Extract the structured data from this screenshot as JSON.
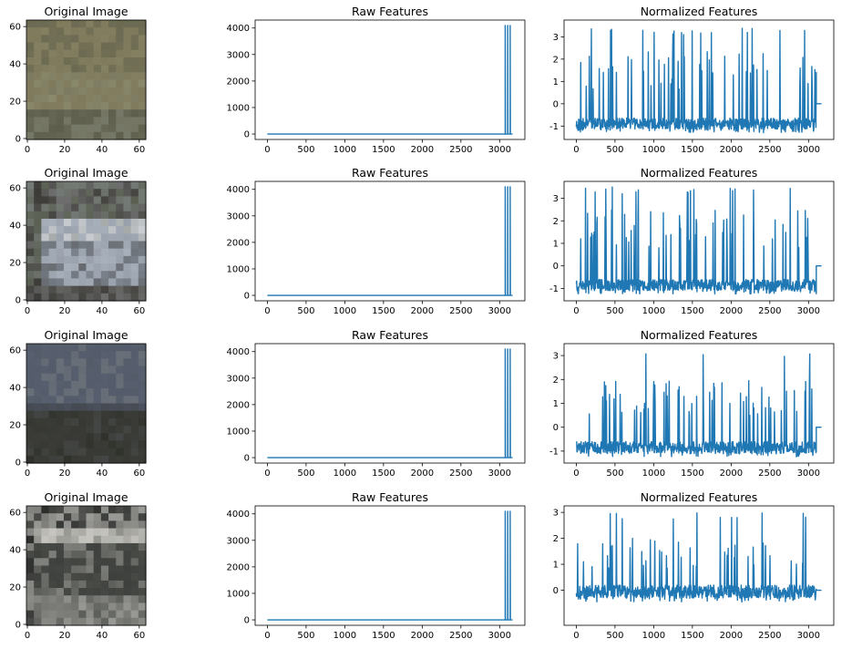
{
  "colors": {
    "line": "#1f77b4",
    "axes": "#000000",
    "background": "#ffffff"
  },
  "chart_data": [
    {
      "row": 1,
      "panels": [
        {
          "type": "image",
          "title": "Original Image",
          "xticks": [
            0,
            20,
            40,
            60
          ],
          "yticks": [
            0,
            20,
            40,
            60
          ],
          "xlim": [
            -0.5,
            63.5
          ],
          "ylim": [
            63.5,
            -0.5
          ],
          "image_description": "blurry roadside scene with grass and trees",
          "palette": [
            "#6b6a52",
            "#807a5c",
            "#8c8a6c",
            "#5e5e4c",
            "#777968"
          ]
        },
        {
          "type": "line",
          "title": "Raw Features",
          "xticks": [
            0,
            500,
            1000,
            1500,
            2000,
            2500,
            3000
          ],
          "yticks": [
            0,
            1000,
            2000,
            3000,
            4000
          ],
          "xlim": [
            -158,
            3326
          ],
          "ylim": [
            -205,
            4300
          ],
          "baseline": 0,
          "spikes": [
            {
              "x": 3072,
              "y": 4096
            },
            {
              "x": 3104,
              "y": 4096
            },
            {
              "x": 3136,
              "y": 4096
            }
          ],
          "x_end": 3167
        },
        {
          "type": "line",
          "title": "Normalized Features",
          "xticks": [
            0,
            500,
            1000,
            1500,
            2000,
            2500,
            3000
          ],
          "yticks": [
            -1,
            0,
            1,
            2,
            3
          ],
          "xlim": [
            -158,
            3326
          ],
          "ylim": [
            -1.6,
            3.75
          ],
          "pattern": {
            "floor": -1.15,
            "typical_peak": 2.4,
            "max_peak": 3.4,
            "tail_value": 0,
            "tail_start": 3100
          }
        }
      ]
    },
    {
      "row": 2,
      "panels": [
        {
          "type": "image",
          "title": "Original Image",
          "xticks": [
            0,
            20,
            40,
            60
          ],
          "yticks": [
            0,
            20,
            40,
            60
          ],
          "xlim": [
            -0.5,
            63.5
          ],
          "ylim": [
            63.5,
            -0.5
          ],
          "image_description": "rear view of a silver hatchback car",
          "palette": [
            "#a8b0bc",
            "#7e858f",
            "#3b3a36",
            "#c9cdd2",
            "#5a5f52"
          ]
        },
        {
          "type": "line",
          "title": "Raw Features",
          "xticks": [
            0,
            500,
            1000,
            1500,
            2000,
            2500,
            3000
          ],
          "yticks": [
            0,
            1000,
            2000,
            3000,
            4000
          ],
          "xlim": [
            -158,
            3326
          ],
          "ylim": [
            -205,
            4300
          ],
          "baseline": 0,
          "spikes": [
            {
              "x": 3072,
              "y": 4096
            },
            {
              "x": 3104,
              "y": 4096
            },
            {
              "x": 3136,
              "y": 4096
            }
          ],
          "x_end": 3167
        },
        {
          "type": "line",
          "title": "Normalized Features",
          "xticks": [
            0,
            500,
            1000,
            1500,
            2000,
            2500,
            3000
          ],
          "yticks": [
            -1,
            0,
            1,
            2,
            3
          ],
          "xlim": [
            -158,
            3326
          ],
          "ylim": [
            -1.55,
            3.75
          ],
          "pattern": {
            "floor": -1.1,
            "typical_peak": 2.6,
            "max_peak": 3.5,
            "tail_value": 0,
            "tail_start": 3100
          }
        }
      ]
    },
    {
      "row": 3,
      "panels": [
        {
          "type": "image",
          "title": "Original Image",
          "xticks": [
            0,
            20,
            40,
            60
          ],
          "yticks": [
            0,
            20,
            40,
            60
          ],
          "xlim": [
            -0.5,
            63.5
          ],
          "ylim": [
            63.5,
            -0.5
          ],
          "image_description": "hazy sky and a dark tree",
          "palette": [
            "#58606f",
            "#4c5260",
            "#3b3c38",
            "#2f3029",
            "#6a7078"
          ]
        },
        {
          "type": "line",
          "title": "Raw Features",
          "xticks": [
            0,
            500,
            1000,
            1500,
            2000,
            2500,
            3000
          ],
          "yticks": [
            0,
            1000,
            2000,
            3000,
            4000
          ],
          "xlim": [
            -158,
            3326
          ],
          "ylim": [
            -205,
            4300
          ],
          "baseline": 0,
          "spikes": [
            {
              "x": 3072,
              "y": 4096
            },
            {
              "x": 3104,
              "y": 4096
            },
            {
              "x": 3136,
              "y": 4096
            }
          ],
          "x_end": 3167
        },
        {
          "type": "line",
          "title": "Normalized Features",
          "xticks": [
            0,
            500,
            1000,
            1500,
            2000,
            2500,
            3000
          ],
          "yticks": [
            -1,
            0,
            1,
            2,
            3
          ],
          "xlim": [
            -158,
            3326
          ],
          "ylim": [
            -1.5,
            3.5
          ],
          "pattern": {
            "floor": -1.1,
            "typical_peak": 2.0,
            "max_peak": 3.25,
            "tail_value": 0,
            "tail_start": 3100
          }
        }
      ]
    },
    {
      "row": 4,
      "panels": [
        {
          "type": "image",
          "title": "Original Image",
          "xticks": [
            0,
            20,
            40,
            60
          ],
          "yticks": [
            0,
            20,
            40,
            60
          ],
          "xlim": [
            -0.5,
            63.5
          ],
          "ylim": [
            63.5,
            -0.5
          ],
          "image_description": "grayscale rear of a dark car",
          "palette": [
            "#9a9a96",
            "#3e403d",
            "#5a5c58",
            "#c7c6c0",
            "#2c2e2c"
          ]
        },
        {
          "type": "line",
          "title": "Raw Features",
          "xticks": [
            0,
            500,
            1000,
            1500,
            2000,
            2500,
            3000
          ],
          "yticks": [
            0,
            1000,
            2000,
            3000,
            4000
          ],
          "xlim": [
            -158,
            3326
          ],
          "ylim": [
            -205,
            4300
          ],
          "baseline": 0,
          "spikes": [
            {
              "x": 3072,
              "y": 4096
            },
            {
              "x": 3104,
              "y": 4096
            },
            {
              "x": 3136,
              "y": 4096
            }
          ],
          "x_end": 3167
        },
        {
          "type": "line",
          "title": "Normalized Features",
          "xticks": [
            0,
            500,
            1000,
            1500,
            2000,
            2500,
            3000
          ],
          "yticks": [
            0,
            1,
            2,
            3
          ],
          "xlim": [
            -158,
            3326
          ],
          "ylim": [
            -1.35,
            3.25
          ],
          "pattern": {
            "floor": -0.3,
            "typical_peak": 2.0,
            "max_peak": 3.0,
            "tail_value": 0,
            "tail_start": 3100
          }
        }
      ]
    }
  ]
}
